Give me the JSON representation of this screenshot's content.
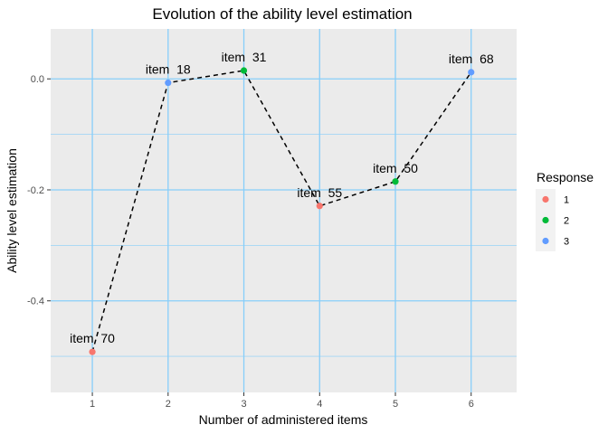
{
  "chart_data": {
    "type": "scatter",
    "title": "Evolution of the ability level estimation",
    "xlabel": "Number of administered items",
    "ylabel": "Ability level estimation",
    "xlim": [
      0.45,
      6.6
    ],
    "ylim": [
      -0.565,
      0.09
    ],
    "x_ticks": [
      1,
      2,
      3,
      4,
      5,
      6
    ],
    "y_ticks": [
      0.0,
      -0.2,
      -0.4
    ],
    "y_tick_labels": [
      "0.0",
      "-0.2",
      "-0.4"
    ],
    "y_minor_grid": [
      0.1,
      -0.1,
      -0.3,
      -0.5
    ],
    "grid": true,
    "line_style": "dashed",
    "points": [
      {
        "x": 1,
        "y": -0.492,
        "label": "item  70",
        "response": "1"
      },
      {
        "x": 2,
        "y": -0.007,
        "label": "item  18",
        "response": "3"
      },
      {
        "x": 3,
        "y": 0.015,
        "label": "item  31",
        "response": "2"
      },
      {
        "x": 4,
        "y": -0.229,
        "label": "item  55",
        "response": "1"
      },
      {
        "x": 5,
        "y": -0.185,
        "label": "item  50",
        "response": "2"
      },
      {
        "x": 6,
        "y": 0.012,
        "label": "item  68",
        "response": "3"
      }
    ],
    "legend": {
      "title": "Response",
      "position": "right",
      "entries": [
        {
          "label": "1",
          "color": "#F8766D"
        },
        {
          "label": "2",
          "color": "#00BA38"
        },
        {
          "label": "3",
          "color": "#619CFF"
        }
      ]
    },
    "colors": {
      "panel_background": "#EBEBEB",
      "grid_color": "#87CEFA",
      "line_color": "#000000"
    }
  }
}
